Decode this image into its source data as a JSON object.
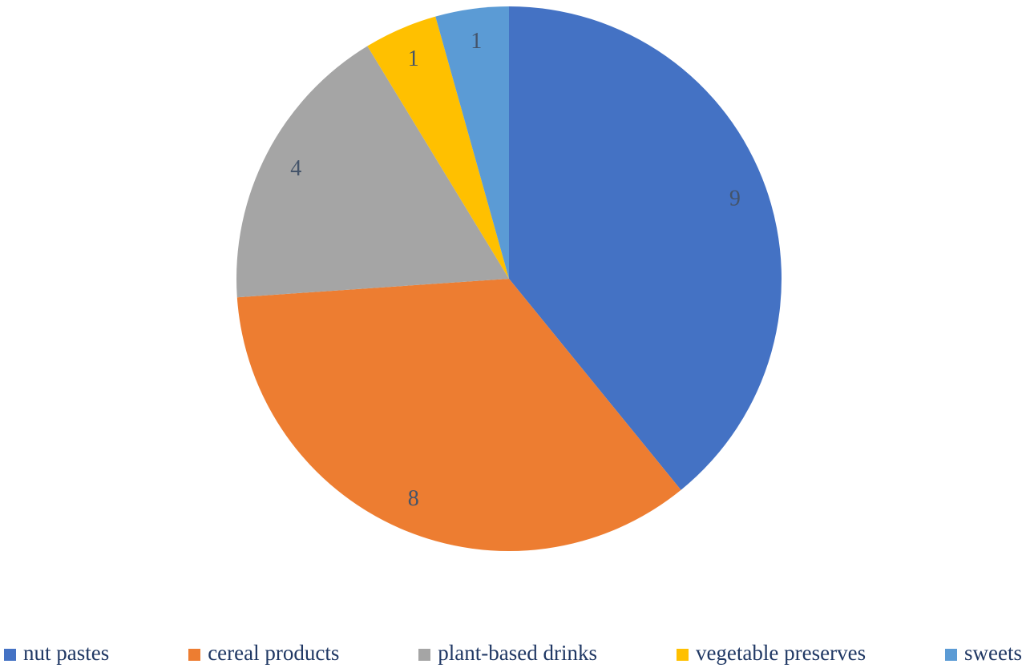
{
  "chart_data": {
    "type": "pie",
    "title": "",
    "categories": [
      "nut pastes",
      "cereal products",
      "plant-based drinks",
      "vegetable preserves",
      "sweets"
    ],
    "values": [
      9,
      8,
      4,
      1,
      1
    ],
    "data_labels": [
      "9",
      "8",
      "4",
      "1",
      "1"
    ],
    "colors": [
      "#4472C4",
      "#ED7D31",
      "#A5A5A5",
      "#FFC000",
      "#5B9BD5"
    ],
    "start_angle_deg": 0,
    "direction": "clockwise",
    "legend_position": "bottom",
    "label_color": "#44546A",
    "legend_text_color": "#203864",
    "background_color": "#FFFFFF"
  }
}
